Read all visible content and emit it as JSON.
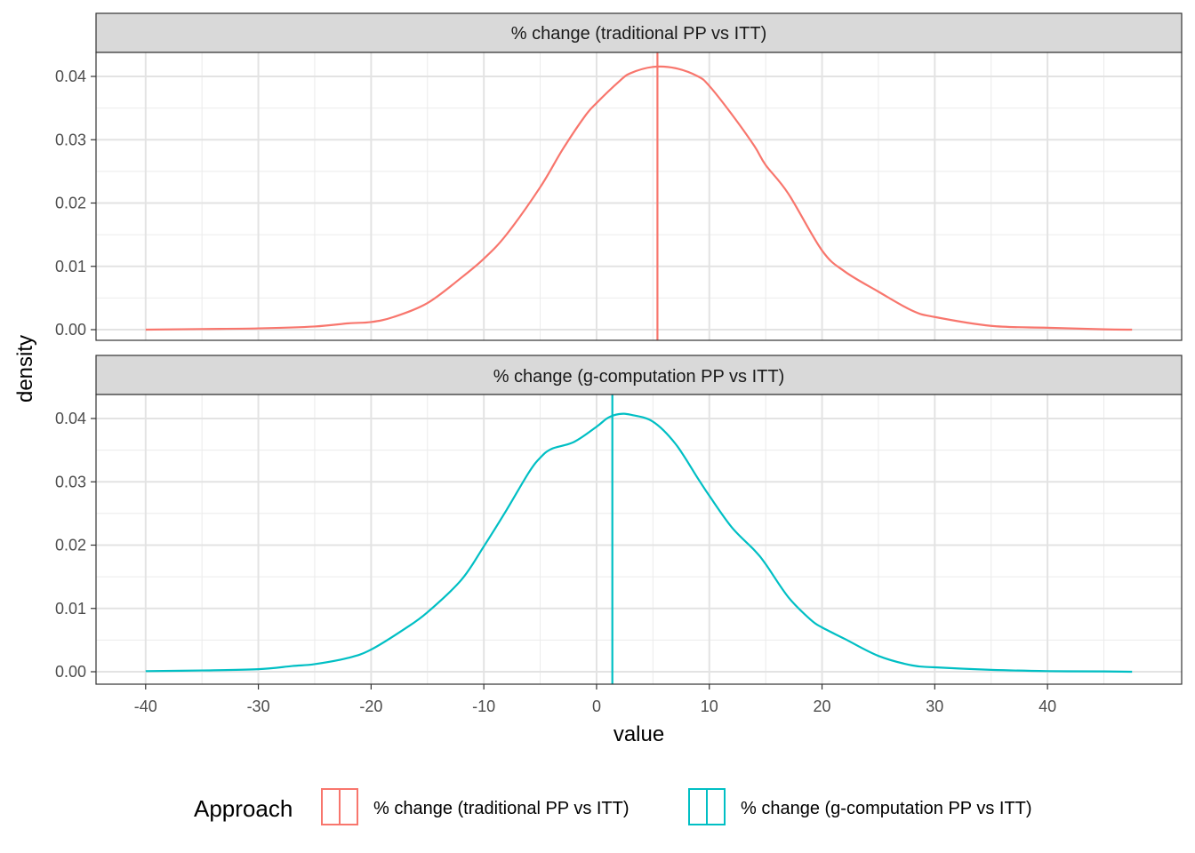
{
  "chart_data": {
    "type": "line",
    "subtype": "density",
    "xlabel": "value",
    "ylabel": "density",
    "xlim": [
      -40,
      47.5
    ],
    "ylim": [
      0,
      0.042
    ],
    "x_ticks": [
      -40,
      -30,
      -20,
      -10,
      0,
      10,
      20,
      30,
      40
    ],
    "y_ticks": [
      0.0,
      0.01,
      0.02,
      0.03,
      0.04
    ],
    "grid": true,
    "legend": {
      "title": "Approach",
      "position": "bottom",
      "entries": [
        {
          "label": "% change (traditional PP vs ITT)",
          "color": "#F8766D"
        },
        {
          "label": "% change (g-computation PP vs ITT)",
          "color": "#00BFC4"
        }
      ]
    },
    "panels": [
      {
        "strip": "% change (traditional PP vs ITT)",
        "color": "#F8766D",
        "vline": 5.4,
        "x": [
          -40,
          -35,
          -30,
          -25,
          -22,
          -20,
          -18,
          -15,
          -12,
          -10,
          -8,
          -5,
          -3,
          -1,
          0,
          2,
          3,
          5,
          7,
          9,
          10,
          12,
          14,
          15,
          17,
          20,
          22,
          25,
          28,
          30,
          35,
          40,
          45,
          47.5
        ],
        "y": [
          0.0,
          0.0001,
          0.0002,
          0.0005,
          0.001,
          0.0012,
          0.002,
          0.0042,
          0.0082,
          0.0112,
          0.015,
          0.0225,
          0.0285,
          0.0338,
          0.0358,
          0.0392,
          0.0405,
          0.0415,
          0.0413,
          0.04,
          0.0385,
          0.034,
          0.029,
          0.026,
          0.0215,
          0.0125,
          0.0092,
          0.006,
          0.003,
          0.002,
          0.0006,
          0.0003,
          5e-05,
          0.0
        ]
      },
      {
        "strip": "% change (g-computation PP vs ITT)",
        "color": "#00BFC4",
        "vline": 1.4,
        "x": [
          -40,
          -35,
          -30,
          -27,
          -25,
          -22,
          -20,
          -17,
          -15,
          -12,
          -10,
          -8,
          -6,
          -5,
          -4,
          -2,
          0,
          1,
          2,
          3,
          5,
          7,
          9,
          10,
          12,
          14,
          15,
          17,
          19,
          20,
          22,
          25,
          28,
          30,
          35,
          40,
          45,
          47.5
        ],
        "y": [
          0.0001,
          0.0002,
          0.0004,
          0.0009,
          0.0012,
          0.0022,
          0.0035,
          0.0068,
          0.0094,
          0.0145,
          0.0198,
          0.0255,
          0.0315,
          0.0338,
          0.0352,
          0.0363,
          0.0387,
          0.0401,
          0.0407,
          0.0406,
          0.0395,
          0.036,
          0.0305,
          0.0278,
          0.0228,
          0.0192,
          0.017,
          0.0118,
          0.0082,
          0.007,
          0.0052,
          0.0025,
          0.001,
          0.0007,
          0.0003,
          0.0001,
          5e-05,
          0.0
        ]
      }
    ]
  }
}
